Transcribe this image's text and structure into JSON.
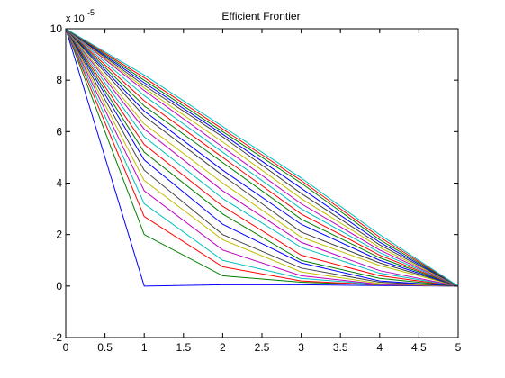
{
  "chart_data": {
    "type": "line",
    "title": "Efficient Frontier",
    "xlabel": "",
    "ylabel": "",
    "xlim": [
      0,
      5
    ],
    "ylim": [
      -2,
      10
    ],
    "x_ticks": [
      0,
      0.5,
      1,
      1.5,
      2,
      2.5,
      3,
      3.5,
      4,
      4.5,
      5
    ],
    "x_tick_labels": [
      "0",
      "0.5",
      "1",
      "1.5",
      "2",
      "2.5",
      "3",
      "3.5",
      "4",
      "4.5",
      "5"
    ],
    "y_ticks": [
      -2,
      0,
      2,
      4,
      6,
      8,
      10
    ],
    "y_tick_labels": [
      "-2",
      "0",
      "2",
      "4",
      "6",
      "8",
      "10"
    ],
    "y_multiplier": {
      "base": "x 10",
      "exponent": "-5"
    },
    "grid": false,
    "legend": "none",
    "x": [
      0,
      1,
      2,
      3,
      4,
      5
    ],
    "series": [
      {
        "color": "#0000ff",
        "values": [
          10,
          0,
          0.05,
          0.05,
          0.02,
          0
        ]
      },
      {
        "color": "#007f00",
        "values": [
          10,
          2.0,
          0.4,
          0.15,
          0.05,
          0
        ]
      },
      {
        "color": "#ff0000",
        "values": [
          10,
          2.7,
          0.75,
          0.2,
          0.05,
          0
        ]
      },
      {
        "color": "#00bfbf",
        "values": [
          10,
          3.2,
          1.0,
          0.3,
          0.06,
          0
        ]
      },
      {
        "color": "#bf00bf",
        "values": [
          10,
          3.7,
          1.4,
          0.4,
          0.07,
          0
        ]
      },
      {
        "color": "#bfbf00",
        "values": [
          10,
          4.1,
          1.8,
          0.55,
          0.1,
          0
        ]
      },
      {
        "color": "#404040",
        "values": [
          10,
          4.5,
          2.0,
          0.7,
          0.15,
          0
        ]
      },
      {
        "color": "#0000ff",
        "values": [
          10,
          4.9,
          2.4,
          0.9,
          0.2,
          0
        ]
      },
      {
        "color": "#007f00",
        "values": [
          10,
          5.2,
          2.8,
          1.0,
          0.3,
          0
        ]
      },
      {
        "color": "#ff0000",
        "values": [
          10,
          5.5,
          3.1,
          1.2,
          0.4,
          0
        ]
      },
      {
        "color": "#00bfbf",
        "values": [
          10,
          5.8,
          3.4,
          1.5,
          0.5,
          0
        ]
      },
      {
        "color": "#bf00bf",
        "values": [
          10,
          6.1,
          3.7,
          1.7,
          0.6,
          0
        ]
      },
      {
        "color": "#bfbf00",
        "values": [
          10,
          6.3,
          4.0,
          1.9,
          0.8,
          0
        ]
      },
      {
        "color": "#404040",
        "values": [
          10,
          6.6,
          4.3,
          2.1,
          0.9,
          0
        ]
      },
      {
        "color": "#0000ff",
        "values": [
          10,
          6.8,
          4.5,
          2.4,
          1.0,
          0
        ]
      },
      {
        "color": "#007f00",
        "values": [
          10,
          7.0,
          4.8,
          2.6,
          1.1,
          0
        ]
      },
      {
        "color": "#ff0000",
        "values": [
          10,
          7.2,
          5.0,
          2.8,
          1.2,
          0
        ]
      },
      {
        "color": "#00bfbf",
        "values": [
          10,
          7.4,
          5.2,
          3.0,
          1.3,
          0
        ]
      },
      {
        "color": "#bf00bf",
        "values": [
          10,
          7.6,
          5.4,
          3.2,
          1.4,
          0
        ]
      },
      {
        "color": "#bfbf00",
        "values": [
          10,
          7.7,
          5.6,
          3.4,
          1.5,
          0
        ]
      },
      {
        "color": "#404040",
        "values": [
          10,
          7.8,
          5.8,
          3.6,
          1.6,
          0
        ]
      },
      {
        "color": "#0000ff",
        "values": [
          10,
          7.9,
          5.9,
          3.8,
          1.7,
          0
        ]
      },
      {
        "color": "#007f00",
        "values": [
          10,
          8.0,
          6.0,
          4.0,
          1.8,
          0
        ]
      },
      {
        "color": "#ff0000",
        "values": [
          10,
          8.1,
          6.1,
          4.1,
          1.9,
          0
        ]
      },
      {
        "color": "#00bfbf",
        "values": [
          10,
          8.2,
          6.2,
          4.2,
          2.0,
          0
        ]
      }
    ]
  }
}
